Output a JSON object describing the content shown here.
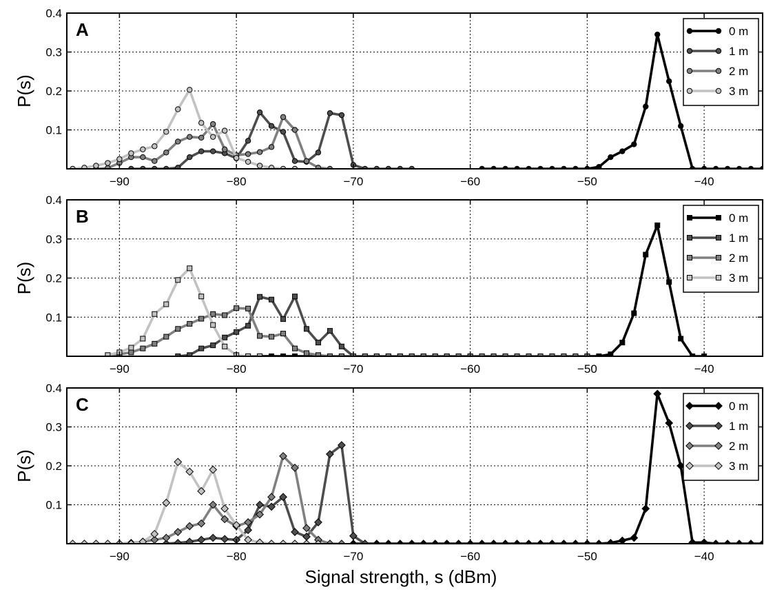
{
  "figure": {
    "xlabel": "Signal strength, s (dBm)",
    "ylabel": "P(s)"
  },
  "chart_data": [
    {
      "type": "line",
      "panel_label": "A",
      "marker": "circle",
      "xlim": [
        -94.5,
        -35
      ],
      "ylim": [
        0,
        0.4
      ],
      "xticks": [
        -90,
        -80,
        -70,
        -60,
        -50,
        -40
      ],
      "xtick_labels": [
        "−90",
        "−80",
        "−70",
        "−60",
        "−50",
        "−40"
      ],
      "yticks": [
        0.1,
        0.2,
        0.3,
        0.4
      ],
      "ytick_labels": [
        "0.1",
        "0.2",
        "0.3",
        "0.4"
      ],
      "grid": true,
      "legend_position": "top-right",
      "series": [
        {
          "name": "0 m",
          "color": "#000000",
          "x": [
            -59,
            -58,
            -57,
            -56,
            -55,
            -54,
            -53,
            -52,
            -51,
            -50,
            -49,
            -48,
            -47,
            -46,
            -45,
            -44,
            -43,
            -42,
            -41,
            -40,
            -39,
            -38,
            -37,
            -36,
            -35
          ],
          "y": [
            0,
            0,
            0,
            0,
            0,
            0,
            0,
            0,
            0,
            0,
            0.005,
            0.03,
            0.045,
            0.063,
            0.16,
            0.345,
            0.225,
            0.11,
            0,
            0,
            0,
            0,
            0,
            0,
            0
          ]
        },
        {
          "name": "1 m",
          "color": "#4d4d4d",
          "x": [
            -89,
            -88,
            -87,
            -86,
            -85,
            -84,
            -83,
            -82,
            -81,
            -80,
            -79,
            -78,
            -77,
            -76,
            -75,
            -74,
            -73,
            -72,
            -71,
            -70,
            -69,
            -68,
            -67,
            -66,
            -65
          ],
          "y": [
            0,
            0,
            0,
            0,
            0.003,
            0.03,
            0.045,
            0.045,
            0.04,
            0.027,
            0.072,
            0.145,
            0.11,
            0.095,
            0.02,
            0.018,
            0.042,
            0.143,
            0.138,
            0.01,
            0,
            0,
            0,
            0,
            0
          ]
        },
        {
          "name": "2 m",
          "color": "#808080",
          "x": [
            -92,
            -91,
            -90,
            -89,
            -88,
            -87,
            -86,
            -85,
            -84,
            -83,
            -82,
            -81,
            -80,
            -79,
            -78,
            -77,
            -76,
            -75,
            -74,
            -73,
            -72
          ],
          "y": [
            0,
            0.002,
            0.015,
            0.03,
            0.03,
            0.02,
            0.042,
            0.07,
            0.082,
            0.08,
            0.115,
            0.05,
            0.035,
            0.038,
            0.043,
            0.056,
            0.133,
            0.1,
            0.02,
            0.003,
            0
          ]
        },
        {
          "name": "3 m",
          "color": "#c2c2c2",
          "x": [
            -94,
            -93,
            -92,
            -91,
            -90,
            -89,
            -88,
            -87,
            -86,
            -85,
            -84,
            -83,
            -82,
            -81,
            -80,
            -79,
            -78,
            -77,
            -76,
            -75
          ],
          "y": [
            0,
            0.003,
            0.008,
            0.015,
            0.025,
            0.04,
            0.05,
            0.058,
            0.095,
            0.153,
            0.203,
            0.118,
            0.082,
            0.098,
            0.028,
            0.018,
            0.008,
            0.003,
            0,
            0
          ]
        }
      ]
    },
    {
      "type": "line",
      "panel_label": "B",
      "marker": "square",
      "xlim": [
        -94.5,
        -35
      ],
      "ylim": [
        0,
        0.4
      ],
      "xticks": [
        -90,
        -80,
        -70,
        -60,
        -50,
        -40
      ],
      "xtick_labels": [
        "−90",
        "−80",
        "−70",
        "−60",
        "−50",
        "−40"
      ],
      "yticks": [
        0.1,
        0.2,
        0.3,
        0.4
      ],
      "ytick_labels": [
        "0.1",
        "0.2",
        "0.3",
        "0.4"
      ],
      "grid": true,
      "legend_position": "top-right",
      "series": [
        {
          "name": "0 m",
          "color": "#000000",
          "x": [
            -79,
            -78,
            -77,
            -76,
            -75,
            -74,
            -73,
            -72,
            -71,
            -70,
            -69,
            -68,
            -67,
            -66,
            -65,
            -64,
            -63,
            -62,
            -61,
            -60,
            -59,
            -58,
            -57,
            -56,
            -55,
            -54,
            -53,
            -52,
            -51,
            -50,
            -49,
            -48,
            -47,
            -46,
            -45,
            -44,
            -43,
            -42,
            -41,
            -40
          ],
          "y": [
            0,
            0,
            0,
            0,
            0,
            0,
            0,
            0,
            0,
            0,
            0,
            0,
            0,
            0,
            0,
            0,
            0,
            0,
            0,
            0,
            0,
            0,
            0,
            0,
            0,
            0,
            0,
            0,
            0,
            0,
            0,
            0.005,
            0.035,
            0.11,
            0.26,
            0.335,
            0.19,
            0.045,
            0,
            0
          ]
        },
        {
          "name": "1 m",
          "color": "#4d4d4d",
          "x": [
            -85,
            -84,
            -83,
            -82,
            -81,
            -80,
            -79,
            -78,
            -77,
            -76,
            -75,
            -74,
            -73,
            -72,
            -71,
            -70
          ],
          "y": [
            0,
            0.003,
            0.02,
            0.028,
            0.048,
            0.062,
            0.078,
            0.152,
            0.145,
            0.095,
            0.153,
            0.07,
            0.035,
            0.065,
            0.025,
            0
          ]
        },
        {
          "name": "2 m",
          "color": "#808080",
          "x": [
            -91,
            -90,
            -89,
            -88,
            -87,
            -86,
            -85,
            -84,
            -83,
            -82,
            -81,
            -80,
            -79,
            -78,
            -77,
            -76,
            -75,
            -74,
            -73,
            -72,
            -71,
            -70,
            -69,
            -68,
            -67,
            -66,
            -65,
            -64,
            -63,
            -62,
            -61,
            -60,
            -59,
            -58,
            -57,
            -56,
            -55,
            -54,
            -53,
            -52,
            -51,
            -50
          ],
          "y": [
            0,
            0.005,
            0.01,
            0.02,
            0.032,
            0.05,
            0.07,
            0.083,
            0.096,
            0.108,
            0.105,
            0.123,
            0.122,
            0.052,
            0.05,
            0.058,
            0.02,
            0.008,
            0.003,
            0,
            0,
            0,
            0,
            0,
            0,
            0,
            0,
            0,
            0,
            0,
            0,
            0,
            0,
            0,
            0,
            0,
            0,
            0,
            0,
            0,
            0,
            0
          ]
        },
        {
          "name": "3 m",
          "color": "#c2c2c2",
          "x": [
            -91,
            -90,
            -89,
            -88,
            -87,
            -86,
            -85,
            -84,
            -83,
            -82,
            -81,
            -80,
            -79,
            -78
          ],
          "y": [
            0.003,
            0.01,
            0.022,
            0.045,
            0.108,
            0.133,
            0.195,
            0.225,
            0.153,
            0.08,
            0.025,
            0.003,
            0,
            0
          ]
        }
      ]
    },
    {
      "type": "line",
      "panel_label": "C",
      "marker": "diamond",
      "xlim": [
        -94.5,
        -35
      ],
      "ylim": [
        0,
        0.4
      ],
      "xticks": [
        -90,
        -80,
        -70,
        -60,
        -50,
        -40
      ],
      "xtick_labels": [
        "−90",
        "−80",
        "−70",
        "−60",
        "−50",
        "−40"
      ],
      "yticks": [
        0.1,
        0.2,
        0.3,
        0.4
      ],
      "ytick_labels": [
        "0.1",
        "0.2",
        "0.3",
        "0.4"
      ],
      "grid": true,
      "legend_position": "top-right",
      "series": [
        {
          "name": "0 m",
          "color": "#000000",
          "x": [
            -70,
            -69,
            -68,
            -67,
            -66,
            -65,
            -64,
            -63,
            -62,
            -61,
            -60,
            -59,
            -58,
            -57,
            -56,
            -55,
            -54,
            -53,
            -52,
            -51,
            -50,
            -49,
            -48,
            -47,
            -46,
            -45,
            -44,
            -43,
            -42,
            -41,
            -40,
            -39,
            -38,
            -37,
            -36,
            -35
          ],
          "y": [
            0,
            0,
            0,
            0,
            0,
            0,
            0,
            0,
            0,
            0,
            0,
            0,
            0,
            0,
            0,
            0,
            0,
            0,
            0,
            0,
            0,
            0,
            0.002,
            0.008,
            0.015,
            0.09,
            0.385,
            0.31,
            0.2,
            0.003,
            0.003,
            0,
            0,
            0,
            0,
            0
          ]
        },
        {
          "name": "1 m",
          "color": "#4d4d4d",
          "x": [
            -86,
            -85,
            -84,
            -83,
            -82,
            -81,
            -80,
            -79,
            -78,
            -77,
            -76,
            -75,
            -74,
            -73,
            -72,
            -71,
            -70,
            -69
          ],
          "y": [
            0,
            0.002,
            0.005,
            0.01,
            0.015,
            0.012,
            0.01,
            0.035,
            0.1,
            0.095,
            0.12,
            0.03,
            0.018,
            0.055,
            0.23,
            0.253,
            0.02,
            0
          ]
        },
        {
          "name": "2 m",
          "color": "#808080",
          "x": [
            -90,
            -89,
            -88,
            -87,
            -86,
            -85,
            -84,
            -83,
            -82,
            -81,
            -80,
            -79,
            -78,
            -77,
            -76,
            -75,
            -74,
            -73,
            -72,
            -71
          ],
          "y": [
            0,
            0.002,
            0.005,
            0.01,
            0.015,
            0.03,
            0.045,
            0.052,
            0.1,
            0.063,
            0.045,
            0.055,
            0.075,
            0.12,
            0.225,
            0.195,
            0.04,
            0.01,
            0,
            0
          ]
        },
        {
          "name": "3 m",
          "color": "#c2c2c2",
          "x": [
            -94,
            -93,
            -92,
            -91,
            -90,
            -89,
            -88,
            -87,
            -86,
            -85,
            -84,
            -83,
            -82,
            -81,
            -80,
            -79,
            -78,
            -77,
            -76,
            -75,
            -74,
            -73
          ],
          "y": [
            0,
            0,
            0,
            0,
            0,
            0,
            0.005,
            0.025,
            0.105,
            0.21,
            0.185,
            0.135,
            0.19,
            0.09,
            0.048,
            0.01,
            0.003,
            0,
            0,
            0,
            0,
            0
          ]
        }
      ]
    }
  ]
}
